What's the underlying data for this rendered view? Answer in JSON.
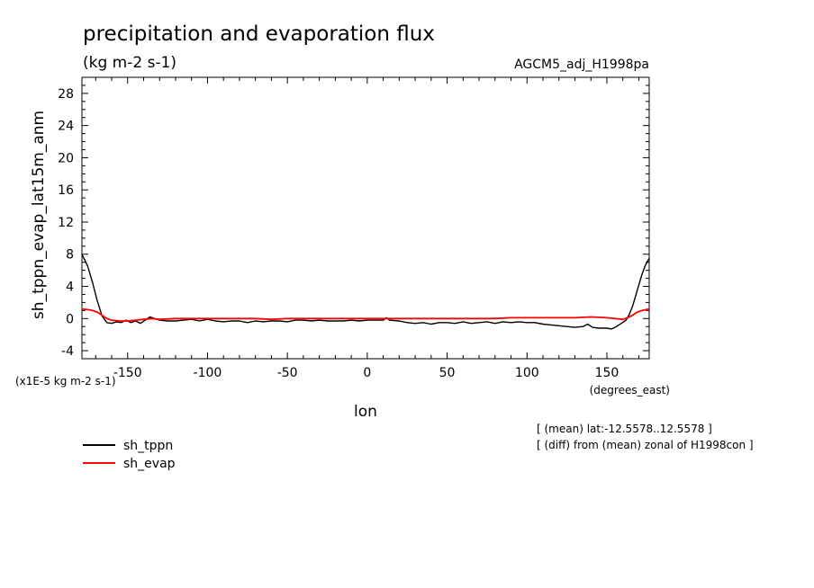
{
  "chart_data": {
    "type": "line",
    "title": "precipitation and evaporation flux",
    "units": "(kg m-2 s-1)",
    "model": "AGCM5_adj_H1998pa",
    "xlabel": "lon",
    "xunits": "(degrees_east)",
    "ylabel": "sh_tppn_evap_lat15m_anm",
    "yscale_label": "(x1E-5 kg m-2 s-1)",
    "xlim": [
      -178.6,
      176.5
    ],
    "ylim": [
      -5,
      30
    ],
    "xticks": [
      -150,
      -100,
      -50,
      0,
      50,
      100,
      150
    ],
    "xtick_labels": [
      "-150",
      "-100",
      "-50",
      "0",
      "50",
      "100",
      "150"
    ],
    "yticks": [
      -4,
      0,
      4,
      8,
      12,
      16,
      20,
      24,
      28
    ],
    "ytick_labels": [
      "-4",
      "0",
      "4",
      "8",
      "12",
      "16",
      "20",
      "24",
      "28"
    ],
    "notes": [
      "[ (mean) lat:-12.5578..12.5578 ]",
      "[ (diff) from (mean) zonal of H1998con ]"
    ],
    "series": [
      {
        "name": "sh_tppn",
        "color": "#000000",
        "x": [
          -178.6,
          -175,
          -172,
          -169,
          -166,
          -163,
          -160,
          -157,
          -154,
          -151,
          -148,
          -145,
          -142,
          -139,
          -136,
          -133,
          -130,
          -125,
          -120,
          -115,
          -110,
          -105,
          -100,
          -95,
          -90,
          -85,
          -80,
          -75,
          -70,
          -65,
          -60,
          -55,
          -50,
          -45,
          -40,
          -35,
          -30,
          -25,
          -20,
          -15,
          -10,
          -5,
          0,
          5,
          10,
          12,
          14,
          20,
          25,
          30,
          35,
          40,
          45,
          50,
          55,
          60,
          65,
          70,
          75,
          80,
          85,
          90,
          95,
          100,
          105,
          110,
          115,
          120,
          125,
          130,
          135,
          138,
          141,
          145,
          150,
          153,
          156,
          159,
          162,
          164,
          166,
          168,
          170,
          172,
          174,
          176.5
        ],
        "y": [
          8.0,
          6.5,
          4.5,
          2.2,
          0.3,
          -0.5,
          -0.6,
          -0.4,
          -0.5,
          -0.2,
          -0.5,
          -0.3,
          -0.6,
          -0.2,
          0.2,
          0.0,
          -0.2,
          -0.3,
          -0.3,
          -0.2,
          -0.1,
          -0.3,
          -0.1,
          -0.3,
          -0.4,
          -0.3,
          -0.3,
          -0.5,
          -0.3,
          -0.4,
          -0.3,
          -0.3,
          -0.4,
          -0.2,
          -0.2,
          -0.3,
          -0.2,
          -0.3,
          -0.3,
          -0.3,
          -0.2,
          -0.3,
          -0.2,
          -0.2,
          -0.2,
          0.1,
          -0.2,
          -0.3,
          -0.5,
          -0.6,
          -0.5,
          -0.7,
          -0.5,
          -0.5,
          -0.6,
          -0.4,
          -0.6,
          -0.5,
          -0.4,
          -0.6,
          -0.4,
          -0.5,
          -0.4,
          -0.5,
          -0.5,
          -0.7,
          -0.8,
          -0.9,
          -1.0,
          -1.1,
          -1.0,
          -0.7,
          -1.1,
          -1.2,
          -1.2,
          -1.3,
          -1.0,
          -0.6,
          -0.2,
          0.5,
          1.5,
          2.8,
          4.2,
          5.5,
          6.6,
          7.5
        ]
      },
      {
        "name": "sh_evap",
        "color": "#ff0000",
        "x": [
          -178.6,
          -175,
          -172,
          -169,
          -166,
          -163,
          -160,
          -155,
          -150,
          -145,
          -140,
          -135,
          -130,
          -120,
          -110,
          -100,
          -90,
          -80,
          -70,
          -60,
          -50,
          -40,
          -30,
          -20,
          -10,
          0,
          10,
          20,
          30,
          40,
          50,
          60,
          70,
          80,
          90,
          100,
          110,
          120,
          130,
          140,
          150,
          155,
          160,
          163,
          166,
          169,
          172,
          176.5
        ],
        "y": [
          1.2,
          1.1,
          1.0,
          0.8,
          0.4,
          0.0,
          -0.2,
          -0.3,
          -0.3,
          -0.2,
          -0.1,
          0.0,
          -0.1,
          0.0,
          0.0,
          0.0,
          0.0,
          0.0,
          0.0,
          -0.1,
          0.0,
          0.0,
          0.0,
          0.0,
          0.0,
          0.0,
          0.0,
          0.0,
          0.0,
          0.0,
          0.0,
          0.0,
          0.0,
          0.0,
          0.1,
          0.1,
          0.1,
          0.1,
          0.1,
          0.2,
          0.1,
          0.0,
          -0.1,
          0.1,
          0.4,
          0.8,
          1.0,
          1.2
        ]
      }
    ]
  }
}
